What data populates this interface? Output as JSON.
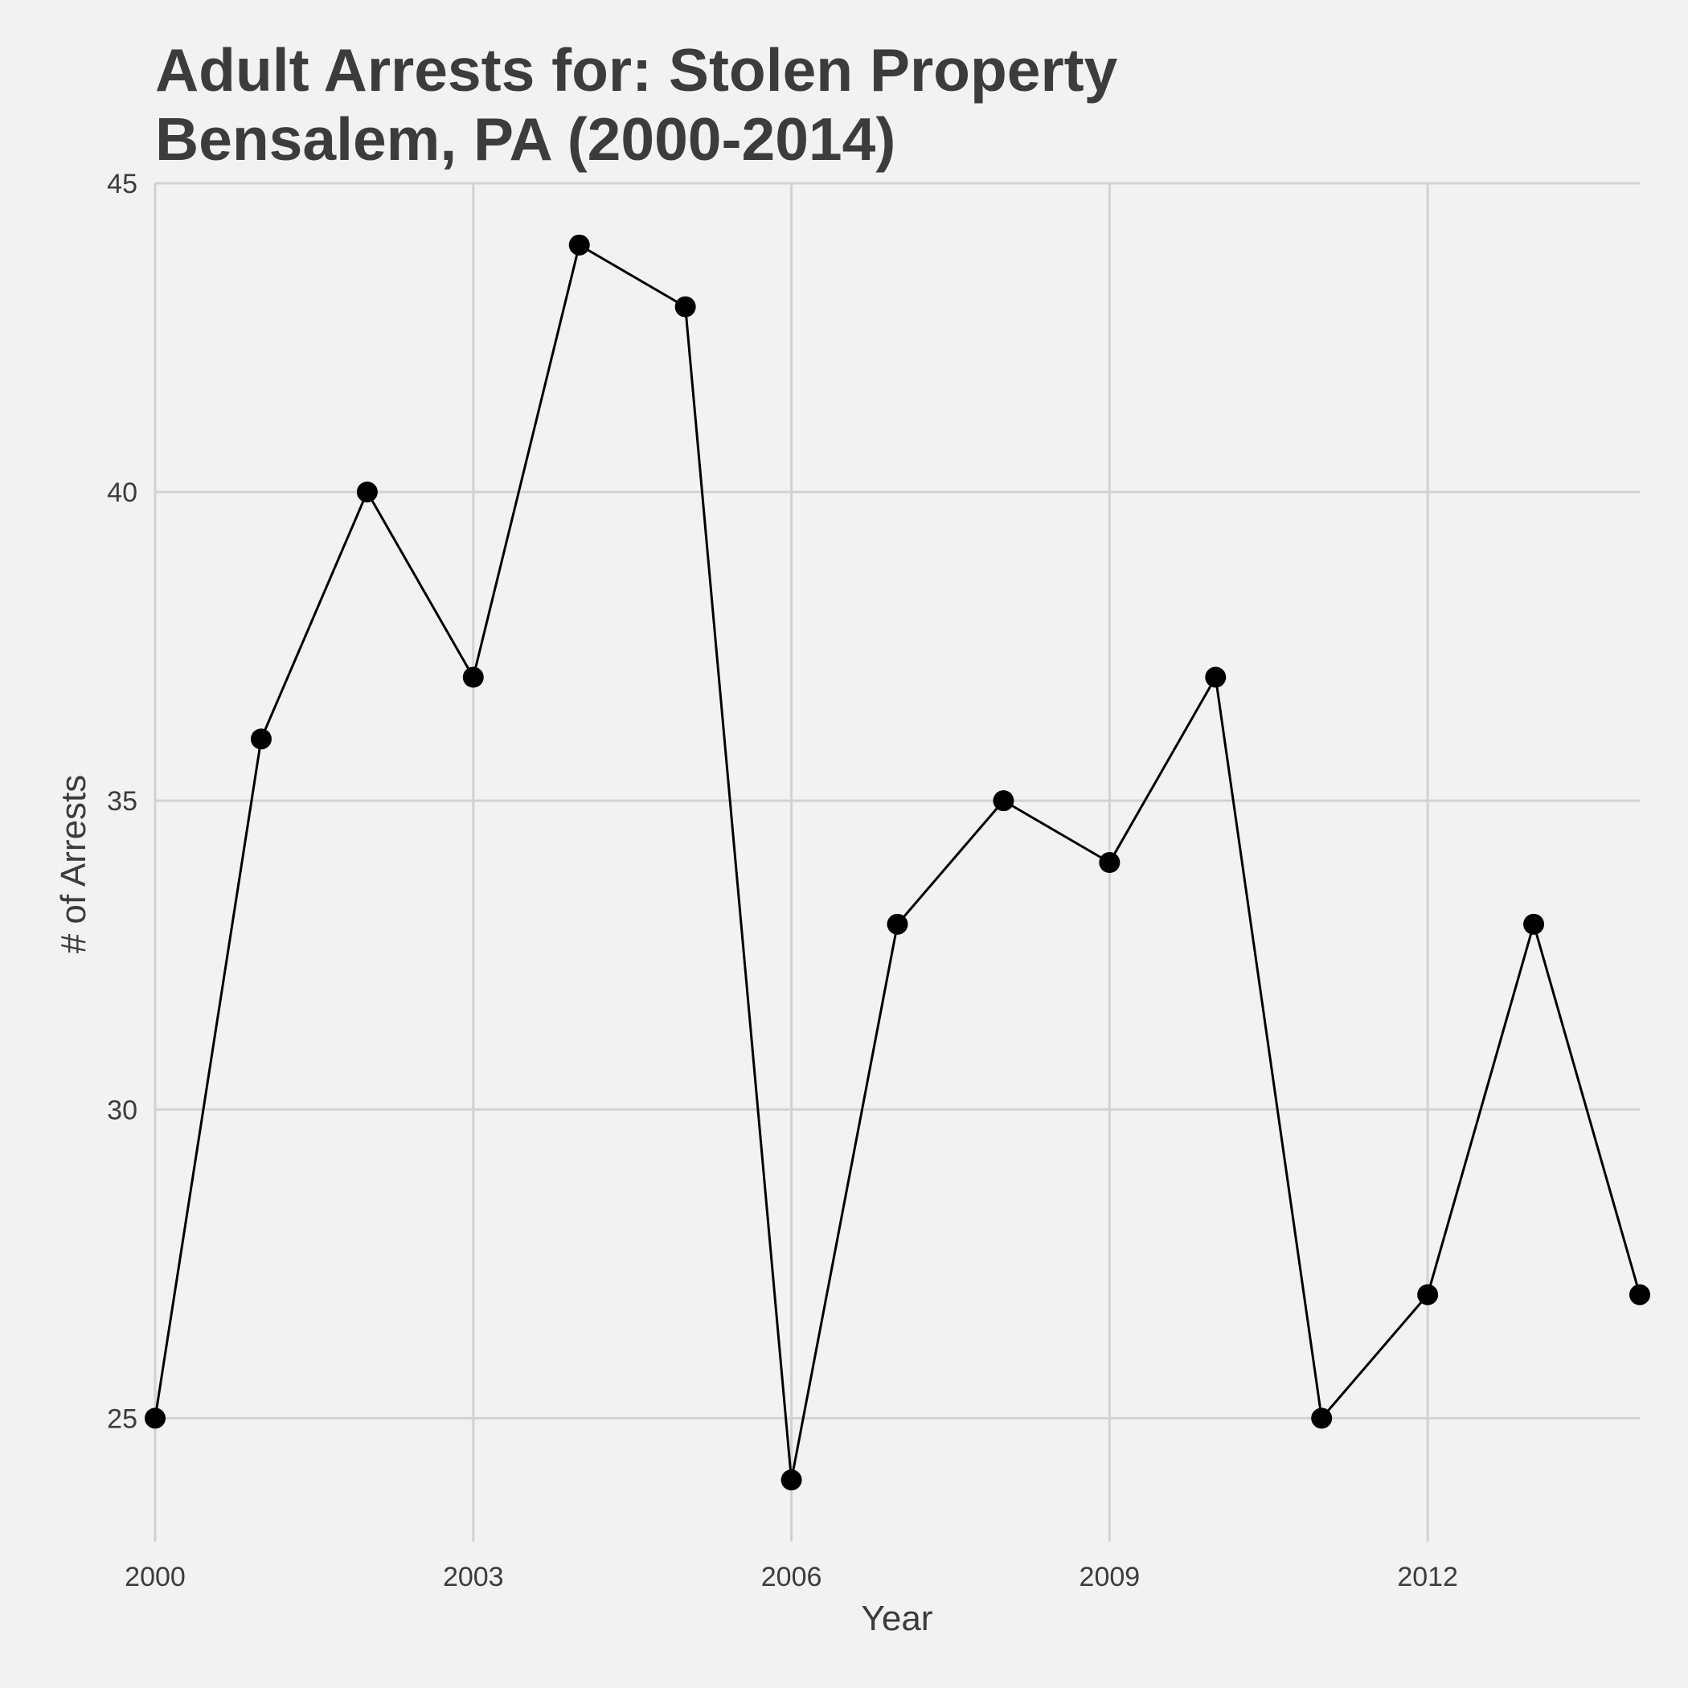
{
  "chart_data": {
    "type": "line",
    "title_line1": "Adult Arrests for: Stolen Property",
    "title_line2": "Bensalem, PA (2000-2014)",
    "xlabel": "Year",
    "ylabel": "# of Arrests",
    "x": [
      2000,
      2001,
      2002,
      2003,
      2004,
      2005,
      2006,
      2007,
      2008,
      2009,
      2010,
      2011,
      2012,
      2013,
      2014
    ],
    "values": [
      25,
      36,
      40,
      37,
      44,
      43,
      24,
      33,
      35,
      34,
      37,
      25,
      27,
      33,
      27
    ],
    "xlim": [
      2000,
      2014
    ],
    "ylim": [
      23,
      45
    ],
    "xticks": [
      2000,
      2003,
      2006,
      2009,
      2012
    ],
    "xtick_labels": [
      "2000",
      "2003",
      "2006",
      "2009",
      "2012"
    ],
    "yticks": [
      25,
      30,
      35,
      40,
      45
    ],
    "ytick_labels": [
      "25",
      "30",
      "35",
      "40",
      "45"
    ],
    "grid": true,
    "line_color": "#000000",
    "point_color": "#000000",
    "grid_color": "#d2d2d2",
    "background_color": "#f2f2f2"
  }
}
